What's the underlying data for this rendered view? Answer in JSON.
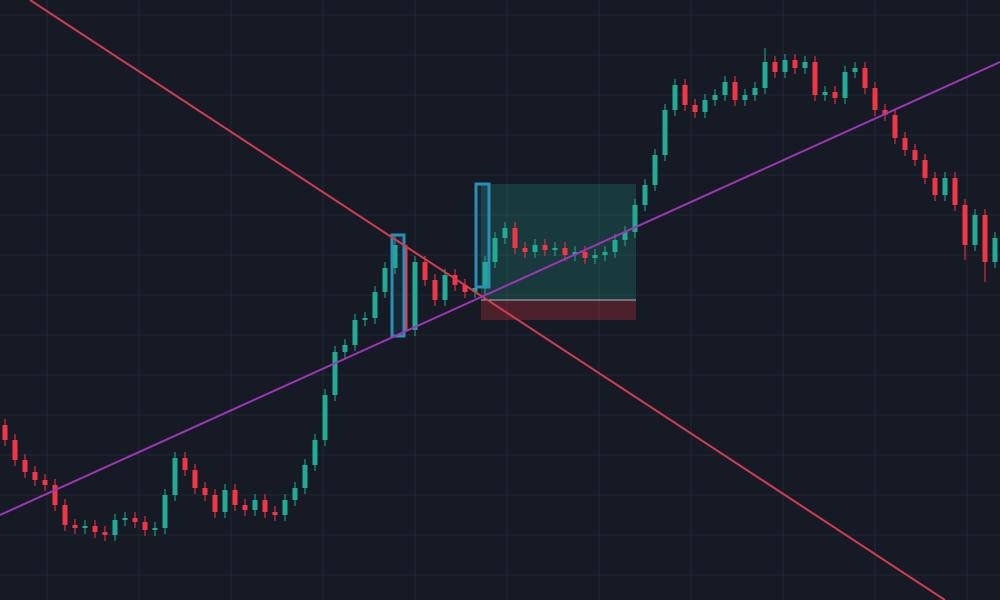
{
  "chart_data": {
    "type": "candlestick",
    "xlim": [
      -0.5,
      99.5
    ],
    "ylim": [
      0,
      600
    ],
    "up_color": "#22ab94",
    "down_color": "#f23645",
    "grid": true,
    "open": [
      175,
      160,
      140,
      128,
      120,
      115,
      95,
      75,
      72,
      74,
      68,
      65,
      80,
      82,
      78,
      70,
      72,
      105,
      142,
      130,
      112,
      105,
      88,
      110,
      95,
      90,
      100,
      88,
      85,
      100,
      112,
      135,
      160,
      205,
      248,
      255,
      280,
      282,
      308,
      332,
      355,
      270,
      338,
      320,
      300,
      325,
      315,
      308,
      312,
      338,
      362,
      372,
      352,
      348,
      355,
      350,
      352,
      345,
      348,
      342,
      345,
      348,
      360,
      368,
      395,
      415,
      445,
      490,
      515,
      495,
      488,
      500,
      505,
      518,
      500,
      505,
      512,
      538,
      528,
      540,
      532,
      538,
      505,
      508,
      502,
      528,
      532,
      512,
      490,
      485,
      462,
      450,
      440,
      422,
      405,
      422,
      395,
      355,
      385,
      338
    ],
    "high": [
      181,
      166,
      146,
      134,
      126,
      121,
      101,
      81,
      80,
      80,
      74,
      86,
      88,
      88,
      84,
      78,
      111,
      148,
      148,
      136,
      118,
      111,
      116,
      116,
      101,
      106,
      106,
      94,
      106,
      118,
      141,
      166,
      211,
      254,
      261,
      286,
      288,
      314,
      338,
      365,
      361,
      344,
      344,
      326,
      331,
      331,
      321,
      318,
      344,
      368,
      378,
      378,
      358,
      361,
      361,
      358,
      358,
      354,
      354,
      351,
      354,
      366,
      374,
      401,
      421,
      451,
      496,
      521,
      521,
      501,
      506,
      511,
      524,
      524,
      511,
      518,
      552,
      544,
      546,
      546,
      544,
      544,
      514,
      514,
      534,
      538,
      538,
      518,
      496,
      491,
      468,
      456,
      446,
      428,
      428,
      428,
      401,
      391,
      391,
      368
    ],
    "low": [
      154,
      134,
      122,
      114,
      109,
      89,
      69,
      66,
      66,
      62,
      59,
      59,
      74,
      72,
      64,
      64,
      66,
      99,
      124,
      106,
      99,
      82,
      82,
      89,
      84,
      84,
      82,
      79,
      79,
      94,
      106,
      129,
      154,
      199,
      242,
      249,
      274,
      276,
      302,
      326,
      264,
      264,
      314,
      294,
      294,
      309,
      302,
      302,
      306,
      332,
      356,
      346,
      342,
      342,
      344,
      344,
      339,
      339,
      336,
      336,
      339,
      342,
      354,
      362,
      389,
      409,
      439,
      484,
      489,
      482,
      482,
      494,
      499,
      494,
      494,
      499,
      506,
      522,
      522,
      526,
      526,
      499,
      499,
      496,
      496,
      522,
      506,
      484,
      479,
      456,
      444,
      434,
      416,
      399,
      399,
      389,
      340,
      349,
      318,
      332
    ],
    "close": [
      160,
      140,
      128,
      120,
      115,
      95,
      75,
      72,
      74,
      68,
      65,
      80,
      82,
      78,
      70,
      72,
      105,
      142,
      130,
      112,
      105,
      88,
      110,
      95,
      90,
      100,
      88,
      85,
      100,
      112,
      135,
      160,
      205,
      248,
      255,
      280,
      282,
      308,
      332,
      355,
      270,
      338,
      320,
      300,
      325,
      315,
      308,
      312,
      338,
      362,
      372,
      352,
      348,
      355,
      350,
      352,
      345,
      348,
      342,
      345,
      348,
      360,
      368,
      395,
      415,
      445,
      490,
      515,
      495,
      488,
      500,
      505,
      518,
      500,
      505,
      512,
      538,
      528,
      540,
      532,
      538,
      505,
      508,
      502,
      528,
      532,
      512,
      490,
      485,
      462,
      450,
      440,
      422,
      405,
      422,
      395,
      355,
      385,
      338,
      362
    ],
    "trend_lines": [
      {
        "color": "#d23c52",
        "x": [
          2.5,
          94
        ],
        "y": [
          600,
          0
        ]
      },
      {
        "color": "#9c36b5",
        "x": [
          -0.5,
          99.5
        ],
        "y": [
          85,
          538
        ]
      }
    ],
    "highlight_boxes": [
      {
        "color": "#2a8fb5",
        "x": [
          38.7,
          39.9
        ],
        "y": [
          264,
          365
        ]
      },
      {
        "color": "#2a8fb5",
        "x": [
          47.1,
          48.4
        ],
        "y": [
          313,
          416
        ]
      }
    ],
    "position": {
      "x": [
        47.6,
        63.1
      ],
      "target": 416,
      "entry": 300,
      "stop": 280
    }
  }
}
